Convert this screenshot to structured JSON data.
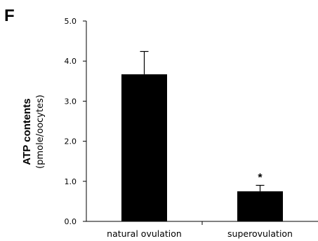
{
  "panel_label": "F",
  "chart_data": {
    "type": "bar",
    "categories": [
      "natural ovulation",
      "superovulation"
    ],
    "values": [
      3.67,
      0.75
    ],
    "errors": [
      0.57,
      0.15
    ],
    "annotations": [
      "",
      "*"
    ],
    "ylabel": "ATP contents",
    "ylabel_unit": "(pmole/oocytes)",
    "xlabel": "",
    "ylim": [
      0,
      5.0
    ],
    "yticks": [
      "0.0",
      "1.0",
      "2.0",
      "3.0",
      "4.0",
      "5.0"
    ],
    "bar_color": "#000000",
    "grid": false,
    "legend": "none"
  }
}
